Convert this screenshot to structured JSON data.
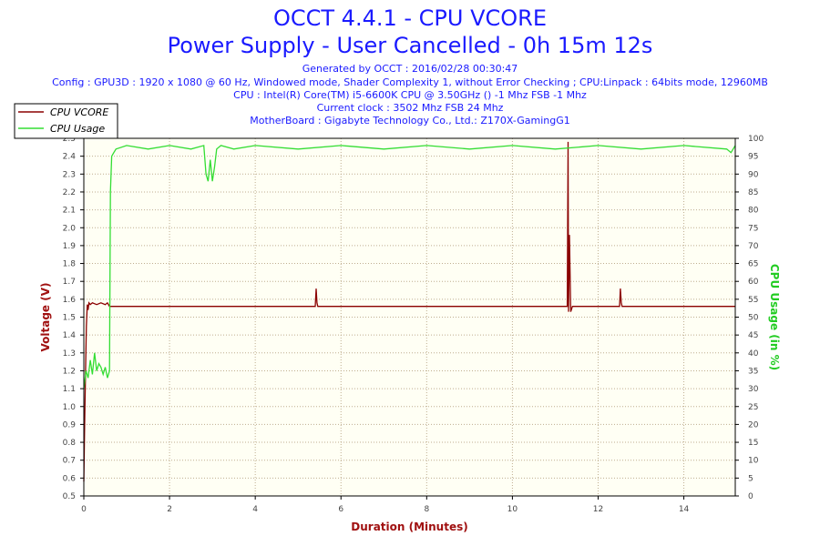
{
  "header": {
    "title": "OCCT 4.4.1 - CPU VCORE",
    "subtitle": "Power Supply - User Cancelled - 0h 15m 12s",
    "info_lines": [
      "Generated by OCCT : 2016/02/28 00:30:47",
      "Config : GPU3D : 1920 x 1080 @ 60 Hz, Windowed mode, Shader Complexity 1, without Error Checking ; CPU:Linpack : 64bits mode, 12960MB",
      "CPU : Intel(R) Core(TM) i5-6600K CPU @ 3.50GHz () -1 Mhz FSB -1 Mhz",
      "Current clock : 3502 Mhz FSB 24 Mhz",
      "MotherBoard : Gigabyte Technology Co., Ltd.: Z170X-GamingG1"
    ]
  },
  "colors": {
    "vcore": "#8b0000",
    "usage": "#33dd33",
    "plot_bg": "#fffff4",
    "grid": "#bfae8f"
  },
  "chart_data": {
    "type": "line",
    "xlabel": "Duration (Minutes)",
    "ylabel": "Voltage (V)",
    "y2label": "CPU Usage (in %)",
    "xlim": [
      0,
      15.2
    ],
    "ylim": [
      0.5,
      2.5
    ],
    "y2lim": [
      0,
      100
    ],
    "x_ticks": [
      0,
      2,
      4,
      6,
      8,
      10,
      12,
      14
    ],
    "y_ticks": [
      0.5,
      0.6,
      0.7,
      0.8,
      0.9,
      1.0,
      1.1,
      1.2,
      1.3,
      1.4,
      1.5,
      1.6,
      1.7,
      1.8,
      1.9,
      2.0,
      2.1,
      2.2,
      2.3,
      2.4,
      2.5
    ],
    "y2_ticks": [
      0,
      5,
      10,
      15,
      20,
      25,
      30,
      35,
      40,
      45,
      50,
      55,
      60,
      65,
      70,
      75,
      80,
      85,
      90,
      95,
      100
    ],
    "grid": true,
    "legend": "top-left",
    "series": [
      {
        "name": "CPU VCORE",
        "axis": "left",
        "x": [
          0,
          0.02,
          0.04,
          0.06,
          0.08,
          0.1,
          0.12,
          0.15,
          0.2,
          0.3,
          0.4,
          0.5,
          0.55,
          0.6,
          0.62,
          1.0,
          2.0,
          3.0,
          4.0,
          5.0,
          5.4,
          5.42,
          5.44,
          5.46,
          6.0,
          8.0,
          10.0,
          11.0,
          11.28,
          11.3,
          11.31,
          11.33,
          11.36,
          11.4,
          12.0,
          12.5,
          12.52,
          12.54,
          12.56,
          13.0,
          14.0,
          15.2
        ],
        "y": [
          0.58,
          0.9,
          1.2,
          1.45,
          1.57,
          1.54,
          1.58,
          1.57,
          1.58,
          1.57,
          1.58,
          1.57,
          1.58,
          1.56,
          1.56,
          1.56,
          1.56,
          1.56,
          1.56,
          1.56,
          1.56,
          1.66,
          1.58,
          1.56,
          1.56,
          1.56,
          1.56,
          1.56,
          1.56,
          2.48,
          1.53,
          1.96,
          1.53,
          1.56,
          1.56,
          1.56,
          1.66,
          1.58,
          1.56,
          1.56,
          1.56,
          1.56
        ]
      },
      {
        "name": "CPU Usage",
        "axis": "right",
        "x": [
          0,
          0.05,
          0.1,
          0.15,
          0.2,
          0.25,
          0.3,
          0.35,
          0.4,
          0.45,
          0.5,
          0.55,
          0.6,
          0.62,
          0.65,
          0.7,
          0.75,
          1.0,
          1.5,
          2.0,
          2.5,
          2.8,
          2.85,
          2.9,
          2.95,
          3.0,
          3.05,
          3.1,
          3.2,
          3.5,
          4.0,
          5.0,
          6.0,
          7.0,
          8.0,
          9.0,
          10.0,
          11.0,
          12.0,
          13.0,
          14.0,
          15.0,
          15.1,
          15.2
        ],
        "y": [
          30,
          35,
          33,
          38,
          34,
          40,
          35,
          37,
          36,
          34,
          36,
          33,
          35,
          85,
          95,
          96,
          97,
          98,
          97,
          98,
          97,
          98,
          90,
          88,
          94,
          88,
          92,
          97,
          98,
          97,
          98,
          97,
          98,
          97,
          98,
          97,
          98,
          97,
          98,
          97,
          98,
          97,
          96,
          98
        ]
      }
    ]
  }
}
